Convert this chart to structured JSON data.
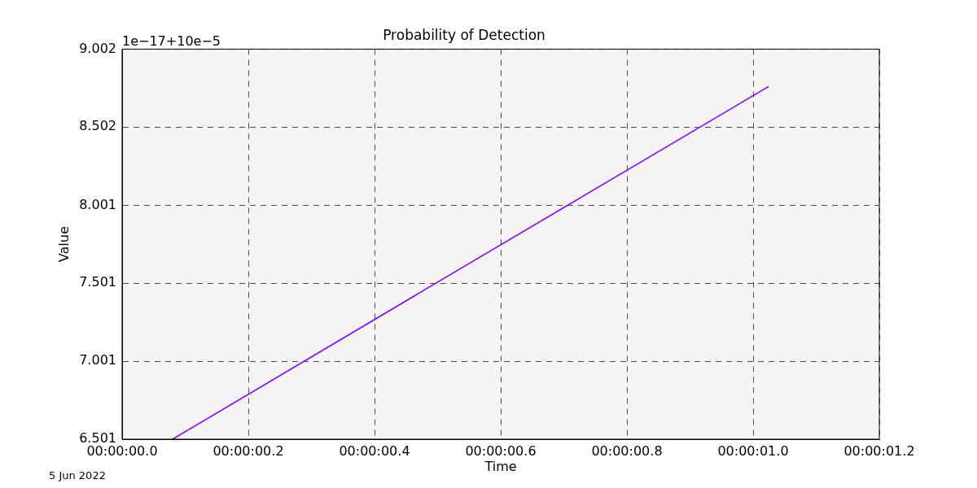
{
  "chart_data": {
    "type": "line",
    "title": "Probability of Detection",
    "xlabel": "Time",
    "ylabel": "Value",
    "x": [
      "2022-06-05T00:00:00.080",
      "2022-06-05T00:00:00.500",
      "2022-06-05T00:00:01.024"
    ],
    "series": [
      {
        "color": "#8000ff",
        "values": [
          6.501,
          7.508,
          8.761
        ]
      }
    ],
    "xlim": [
      "2022-06-05T00:00:00.000",
      "2022-06-05T00:00:01.200"
    ],
    "xticks": [
      {
        "value": "2022-06-05T00:00:00.000",
        "label": "00:00:00.0"
      },
      {
        "value": "2022-06-05T00:00:00.200",
        "label": "00:00:00.2"
      },
      {
        "value": "2022-06-05T00:00:00.400",
        "label": "00:00:00.4"
      },
      {
        "value": "2022-06-05T00:00:00.600",
        "label": "00:00:00.6"
      },
      {
        "value": "2022-06-05T00:00:00.800",
        "label": "00:00:00.8"
      },
      {
        "value": "2022-06-05T00:00:01.000",
        "label": "00:00:01.0"
      },
      {
        "value": "2022-06-05T00:00:01.200",
        "label": "00:00:01.2"
      }
    ],
    "ylim": [
      6.501,
      9.002
    ],
    "yticks": [
      6.501,
      7.001,
      7.501,
      8.001,
      8.502,
      9.002
    ],
    "grid": true,
    "annotations": [
      "1e−17+10e−5",
      "5 Jun 2022"
    ]
  }
}
